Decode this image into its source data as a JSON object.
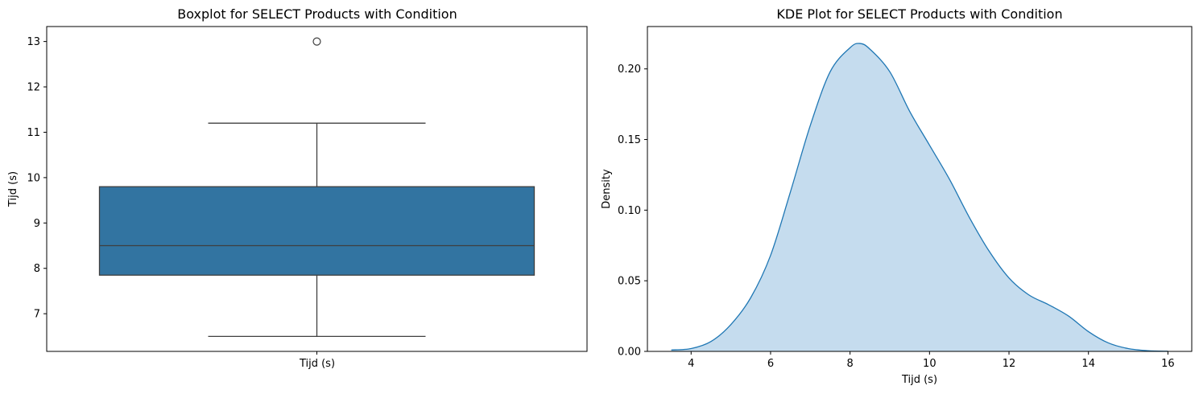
{
  "chart_data": [
    {
      "type": "box",
      "title": "Boxplot for SELECT Products with Condition",
      "xlabel": "",
      "ylabel": "Tijd (s)",
      "categories": [
        "Tijd (s)"
      ],
      "ylim": [
        6.17,
        13.33
      ],
      "yticks": [
        7,
        8,
        9,
        10,
        11,
        12,
        13
      ],
      "box": {
        "whisker_low": 6.5,
        "q1": 7.85,
        "median": 8.5,
        "q3": 9.8,
        "whisker_high": 11.2,
        "outliers": [
          13.0
        ]
      },
      "colors": {
        "box": "#3274a1",
        "lines": "#3f3f3f"
      }
    },
    {
      "type": "area",
      "title": "KDE Plot for SELECT Products with Condition",
      "xlabel": "Tijd (s)",
      "ylabel": "Density",
      "xlim": [
        2.9,
        16.6
      ],
      "ylim": [
        0,
        0.23
      ],
      "xticks": [
        4,
        6,
        8,
        10,
        12,
        14,
        16
      ],
      "yticks": [
        0.0,
        0.05,
        0.1,
        0.15,
        0.2
      ],
      "ytick_labels": [
        "0.00",
        "0.05",
        "0.10",
        "0.15",
        "0.20"
      ],
      "series": [
        {
          "x": [
            3.5,
            4.0,
            4.5,
            5.0,
            5.5,
            6.0,
            6.5,
            7.0,
            7.5,
            8.0,
            8.25,
            8.5,
            9.0,
            9.5,
            10.0,
            10.5,
            11.0,
            11.5,
            12.0,
            12.5,
            13.0,
            13.5,
            14.0,
            14.5,
            15.0,
            15.5,
            16.0
          ],
          "y": [
            0.001,
            0.002,
            0.007,
            0.019,
            0.038,
            0.068,
            0.113,
            0.16,
            0.198,
            0.215,
            0.218,
            0.214,
            0.198,
            0.17,
            0.146,
            0.122,
            0.095,
            0.071,
            0.052,
            0.04,
            0.033,
            0.025,
            0.014,
            0.006,
            0.002,
            0.0005,
            0.0001
          ]
        }
      ],
      "colors": {
        "line": "#1f77b4",
        "fill": "#c5dcee"
      }
    }
  ]
}
